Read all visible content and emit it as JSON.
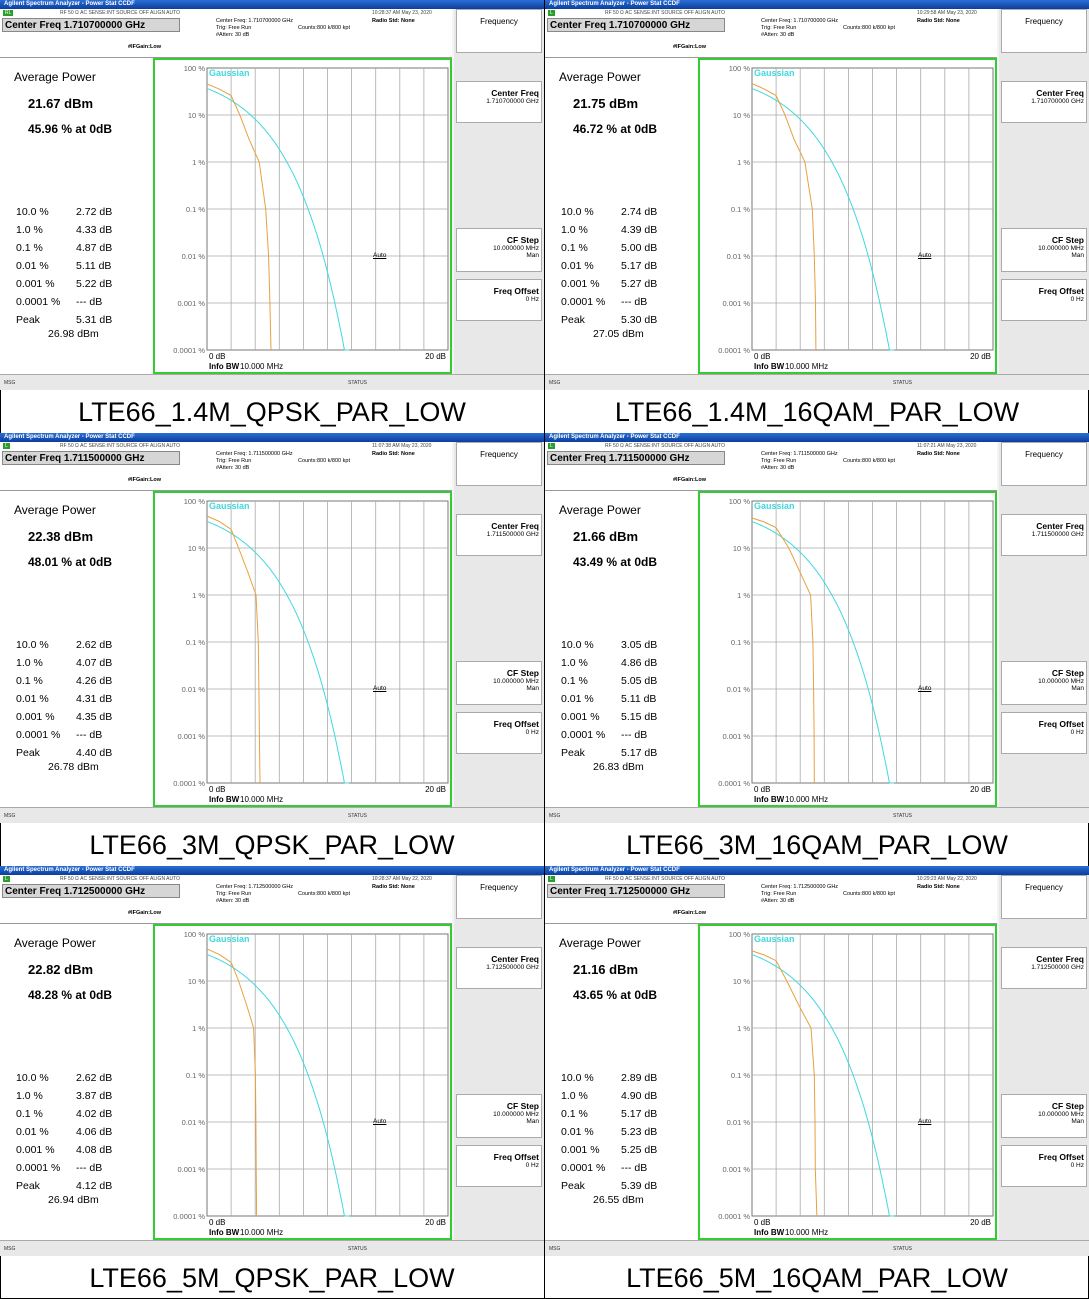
{
  "app": {
    "window_title": "Agilent Spectrum Analyzer - Power Stat CCDF",
    "top_indicators": "RF    50 Ω  AC      SENSE:INT  SOURCE OFF     ALIGN AUTO",
    "radio_std": "Radio Std: None",
    "trig": "Trig: Free Run",
    "counts": "Counts:800 k/800 kpt",
    "atten": "#Atten: 30 dB",
    "if_gain": "#IFGain:Low",
    "gaussian_label": "Gaussian",
    "y_ticks": [
      "100 %",
      "10 %",
      "1 %",
      "0.1 %",
      "0.01 %",
      "0.001 %",
      "0.0001 %"
    ],
    "x_start": "0 dB",
    "x_end": "20 dB",
    "info_bw_label": "Info BW",
    "info_bw_value": "10.000 MHz",
    "avg_power_label": "Average Power",
    "stat_labels": [
      "10.0 %",
      "1.0 %",
      "0.1 %",
      "0.01 %",
      "0.001 %",
      "0.0001 %",
      "Peak"
    ],
    "softkeys": {
      "header": "Frequency",
      "center_freq": "Center Freq",
      "cf_step": "CF Step",
      "cf_step_value": "10.000000 MHz",
      "auto": "Auto",
      "man": "Man",
      "freq_offset": "Freq Offset",
      "freq_offset_value": "0 Hz"
    },
    "status_msg": "MSG",
    "status_label": "STATUS",
    "colors": {
      "measured_trace": "#e8a040",
      "gaussian_trace": "#40d8e0",
      "graticule_border": "#33cc33",
      "title_bar": "#0b3e9c"
    }
  },
  "panels": [
    {
      "caption": "LTE66_1.4M_QPSK_PAR_LOW",
      "center_freq_banner": "Center Freq 1.710700000 GHz",
      "center_freq_line": "Center Freq: 1.710700000 GHz",
      "center_freq_softkey": "1.710700000 GHz",
      "timestamp": "10:28:37 AM May 23, 2020",
      "mode": "RL",
      "avg_power": "21.67 dBm",
      "pct_at_0db": "45.96 % at 0dB",
      "stats": [
        "2.72 dB",
        "4.33 dB",
        "4.87 dB",
        "5.11 dB",
        "5.22 dB",
        "--- dB",
        "5.31 dB"
      ],
      "peak_dbm": "26.98 dBm",
      "trace_points_db": [
        [
          0,
          45.96
        ],
        [
          1,
          36
        ],
        [
          2,
          26
        ],
        [
          2.72,
          10
        ],
        [
          3.5,
          3
        ],
        [
          4.33,
          1
        ],
        [
          4.87,
          0.1
        ],
        [
          5.11,
          0.01
        ],
        [
          5.22,
          0.001
        ],
        [
          5.31,
          0.0001
        ]
      ]
    },
    {
      "caption": "LTE66_1.4M_16QAM_PAR_LOW",
      "center_freq_banner": "Center Freq 1.710700000 GHz",
      "center_freq_line": "Center Freq: 1.710700000 GHz",
      "center_freq_softkey": "1.710700000 GHz",
      "timestamp": "10:29:58 AM May 23, 2020",
      "mode": "L",
      "avg_power": "21.75 dBm",
      "pct_at_0db": "46.72 % at 0dB",
      "stats": [
        "2.74 dB",
        "4.39 dB",
        "5.00 dB",
        "5.17 dB",
        "5.27 dB",
        "--- dB",
        "5.30 dB"
      ],
      "peak_dbm": "27.05 dBm",
      "trace_points_db": [
        [
          0,
          46.72
        ],
        [
          1,
          36
        ],
        [
          2,
          26
        ],
        [
          2.74,
          10
        ],
        [
          3.5,
          3
        ],
        [
          4.39,
          1
        ],
        [
          5.0,
          0.1
        ],
        [
          5.17,
          0.01
        ],
        [
          5.27,
          0.001
        ],
        [
          5.3,
          0.0001
        ]
      ]
    },
    {
      "caption": "LTE66_3M_QPSK_PAR_LOW",
      "center_freq_banner": "Center Freq 1.711500000 GHz",
      "center_freq_line": "Center Freq: 1.711500000 GHz",
      "center_freq_softkey": "1.711500000 GHz",
      "timestamp": "11:07:38 AM May 23, 2020",
      "mode": "L",
      "avg_power": "22.38 dBm",
      "pct_at_0db": "48.01 % at 0dB",
      "stats": [
        "2.62 dB",
        "4.07 dB",
        "4.26 dB",
        "4.31 dB",
        "4.35 dB",
        "--- dB",
        "4.40 dB"
      ],
      "peak_dbm": "26.78 dBm",
      "trace_points_db": [
        [
          0,
          48.01
        ],
        [
          1,
          37
        ],
        [
          2,
          25
        ],
        [
          2.62,
          10
        ],
        [
          3.4,
          3
        ],
        [
          4.07,
          1
        ],
        [
          4.26,
          0.1
        ],
        [
          4.31,
          0.01
        ],
        [
          4.35,
          0.001
        ],
        [
          4.4,
          0.0001
        ]
      ]
    },
    {
      "caption": "LTE66_3M_16QAM_PAR_LOW",
      "center_freq_banner": "Center Freq 1.711500000 GHz",
      "center_freq_line": "Center Freq: 1.711500000 GHz",
      "center_freq_softkey": "1.711500000 GHz",
      "timestamp": "11:07:21 AM May 23, 2020",
      "mode": "L",
      "avg_power": "21.66 dBm",
      "pct_at_0db": "43.49 % at 0dB",
      "stats": [
        "3.05 dB",
        "4.86 dB",
        "5.05 dB",
        "5.11 dB",
        "5.15 dB",
        "--- dB",
        "5.17 dB"
      ],
      "peak_dbm": "26.83 dBm",
      "trace_points_db": [
        [
          0,
          43.49
        ],
        [
          1,
          36
        ],
        [
          2,
          27
        ],
        [
          3.05,
          10
        ],
        [
          4,
          3
        ],
        [
          4.86,
          1
        ],
        [
          5.05,
          0.1
        ],
        [
          5.11,
          0.01
        ],
        [
          5.15,
          0.001
        ],
        [
          5.17,
          0.0001
        ]
      ]
    },
    {
      "caption": "LTE66_5M_QPSK_PAR_LOW",
      "center_freq_banner": "Center Freq 1.712500000 GHz",
      "center_freq_line": "Center Freq: 1.712500000 GHz",
      "center_freq_softkey": "1.712500000 GHz",
      "timestamp": "10:28:37 AM May 22, 2020",
      "mode": "L",
      "avg_power": "22.82 dBm",
      "pct_at_0db": "48.28 % at 0dB",
      "stats": [
        "2.62 dB",
        "3.87 dB",
        "4.02 dB",
        "4.06 dB",
        "4.08 dB",
        "--- dB",
        "4.12 dB"
      ],
      "peak_dbm": "26.94 dBm",
      "trace_points_db": [
        [
          0,
          48.28
        ],
        [
          1,
          37
        ],
        [
          2,
          25
        ],
        [
          2.62,
          10
        ],
        [
          3.3,
          3
        ],
        [
          3.87,
          1
        ],
        [
          4.02,
          0.1
        ],
        [
          4.06,
          0.01
        ],
        [
          4.08,
          0.001
        ],
        [
          4.12,
          0.0001
        ]
      ]
    },
    {
      "caption": "LTE66_5M_16QAM_PAR_LOW",
      "center_freq_banner": "Center Freq 1.712500000 GHz",
      "center_freq_line": "Center Freq: 1.712500000 GHz",
      "center_freq_softkey": "1.712500000 GHz",
      "timestamp": "10:29:23 AM May 22, 2020",
      "mode": "L",
      "avg_power": "21.16 dBm",
      "pct_at_0db": "43.65 % at 0dB",
      "stats": [
        "2.89 dB",
        "4.90 dB",
        "5.17 dB",
        "5.23 dB",
        "5.25 dB",
        "--- dB",
        "5.39 dB"
      ],
      "peak_dbm": "26.55 dBm",
      "trace_points_db": [
        [
          0,
          43.65
        ],
        [
          1,
          36
        ],
        [
          2,
          27
        ],
        [
          2.89,
          10
        ],
        [
          3.9,
          3
        ],
        [
          4.9,
          1
        ],
        [
          5.17,
          0.1
        ],
        [
          5.23,
          0.01
        ],
        [
          5.25,
          0.001
        ],
        [
          5.39,
          0.0001
        ]
      ]
    }
  ]
}
